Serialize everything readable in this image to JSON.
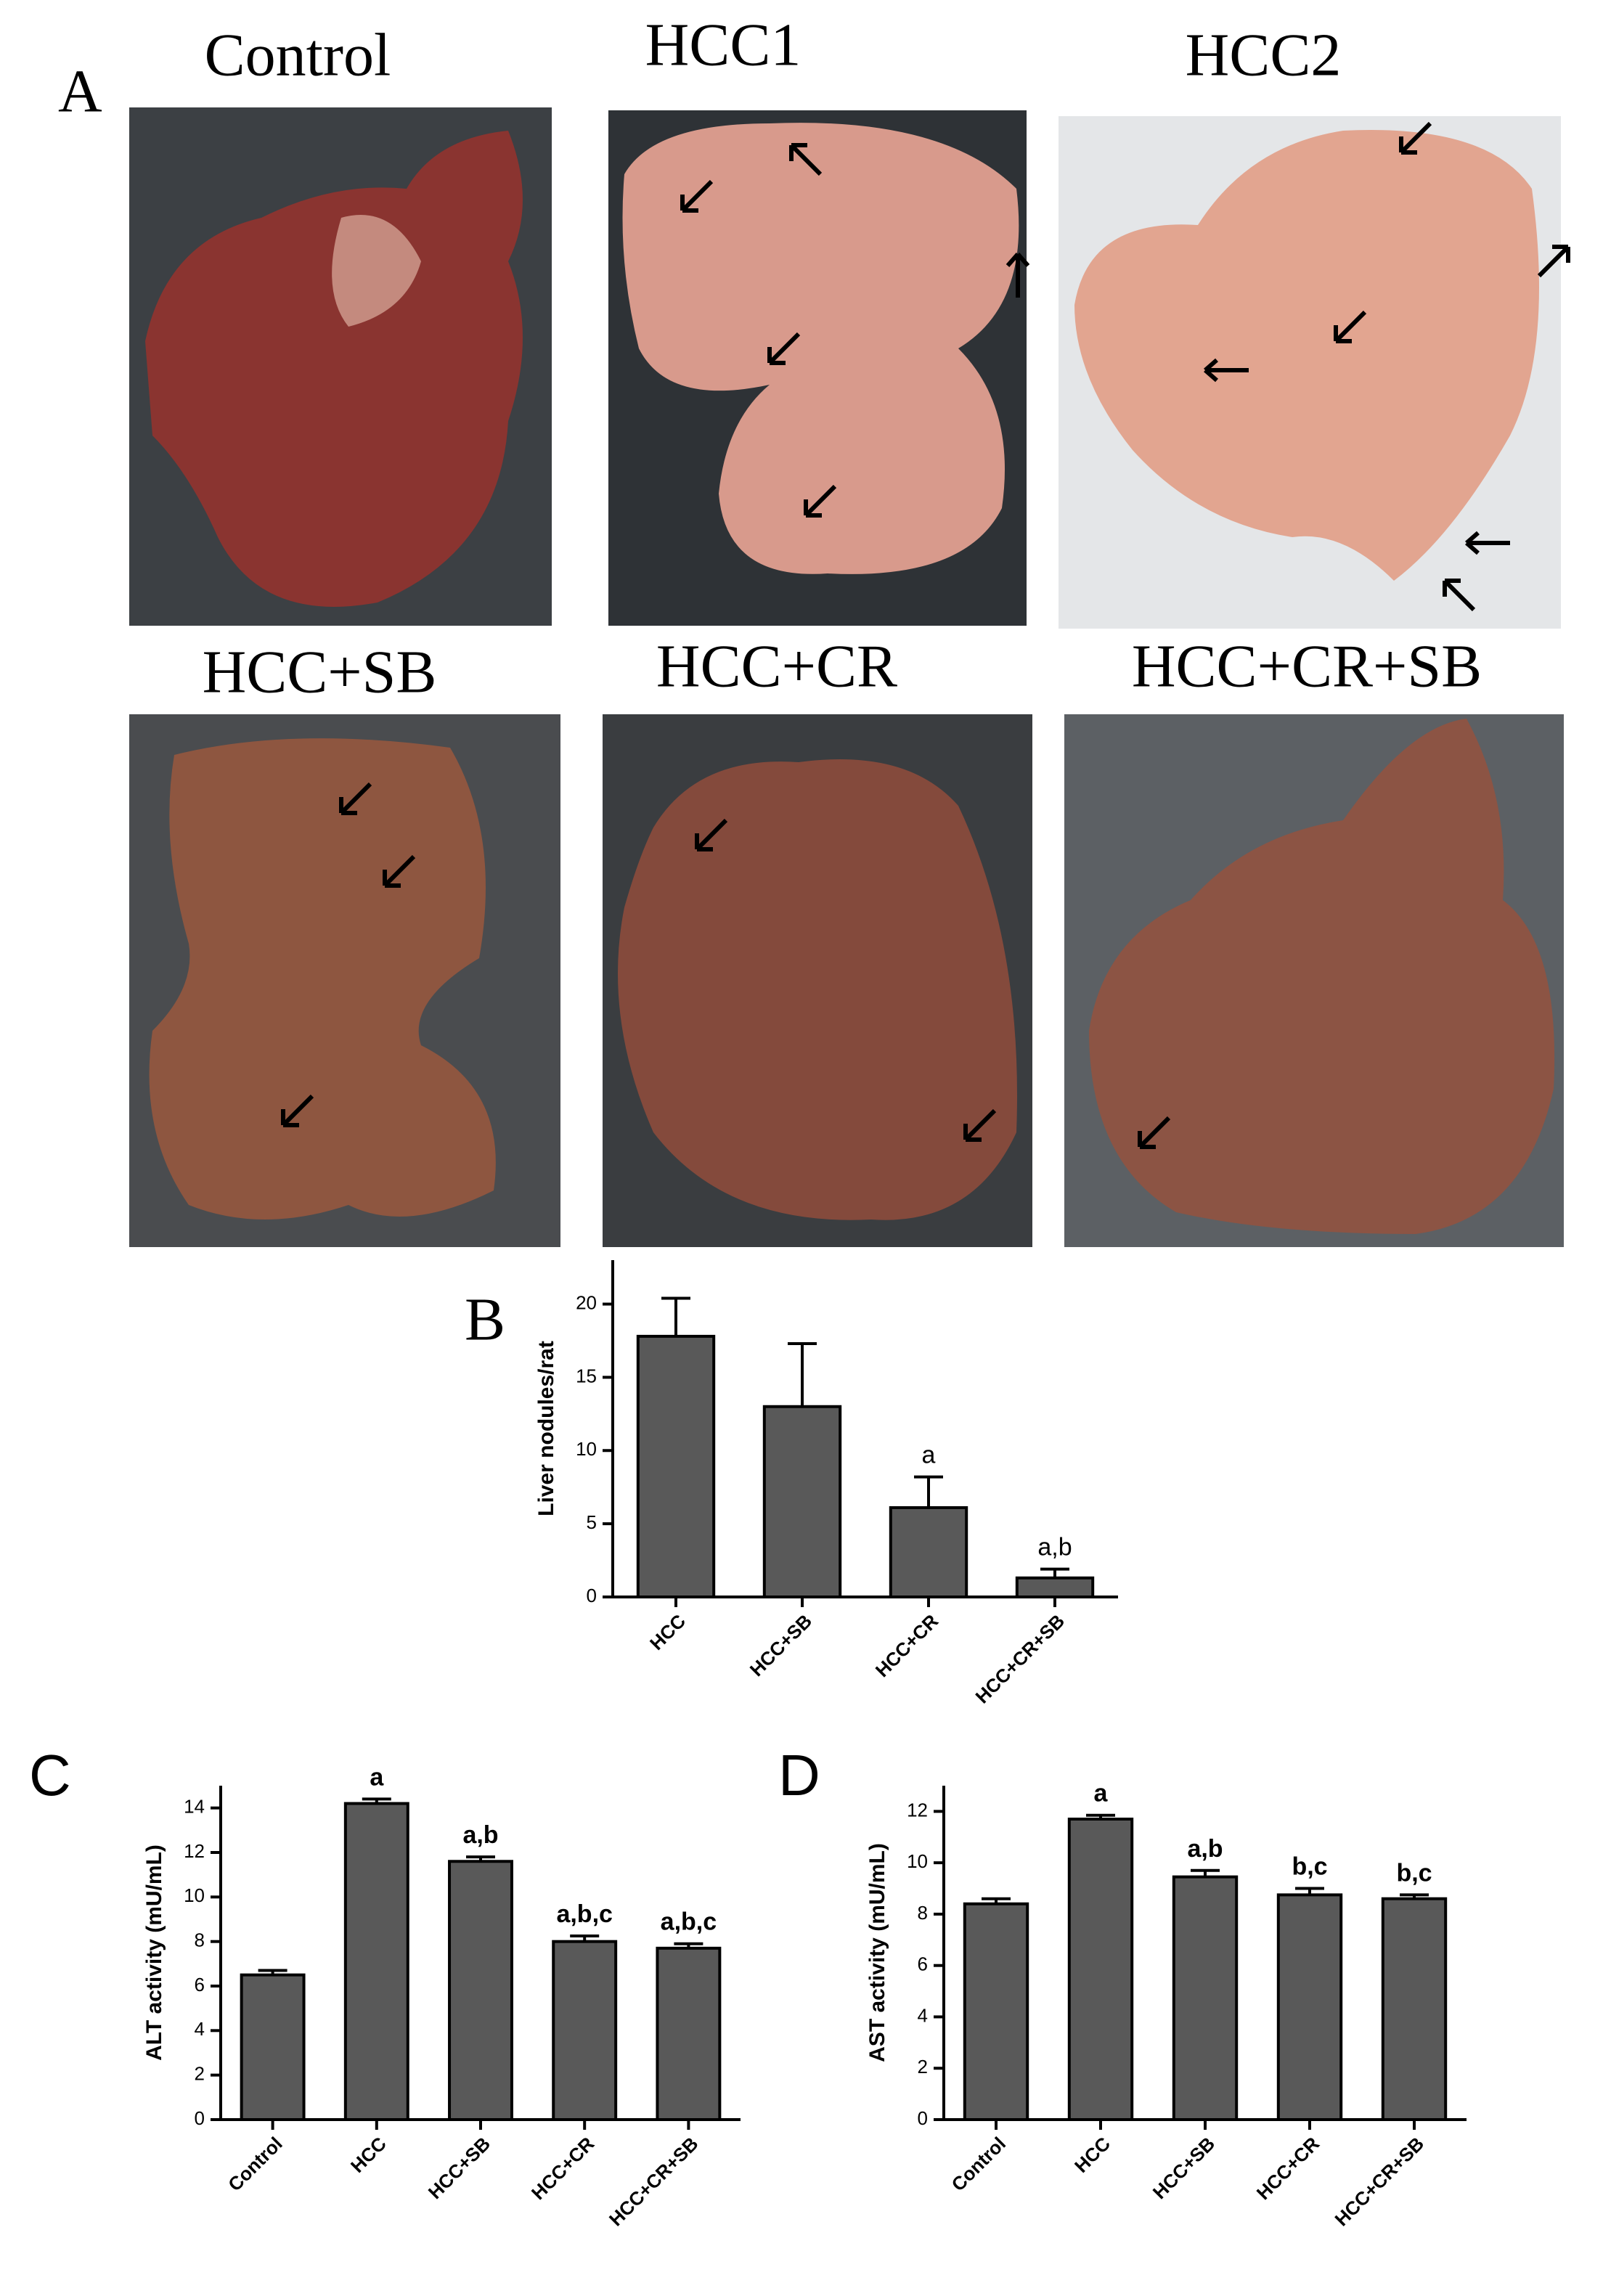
{
  "figure": {
    "panel": "A",
    "photos": [
      "Control",
      "HCC1",
      "HCC2",
      "HCC+SB",
      "HCC+CR",
      "HCC+CR+SB"
    ]
  },
  "chart_data": [
    {
      "type": "bar",
      "panel": "B",
      "ylabel": "Liver nodules/rat",
      "color": "#595959",
      "categories": [
        "HCC",
        "HCC+SB",
        "HCC+CR",
        "HCC+CR+SB"
      ],
      "values": [
        17.8,
        13,
        6.1,
        1.3
      ],
      "errors": [
        2.6,
        4.3,
        2.1,
        0.6
      ],
      "annotations": [
        null,
        null,
        "a",
        "a,b"
      ],
      "ylim": [
        0,
        23
      ],
      "yticks": [
        0,
        5,
        10,
        15,
        20
      ]
    },
    {
      "type": "bar",
      "panel": "C",
      "ylabel": "ALT activity (mU/mL)",
      "color": "#595959",
      "categories": [
        "Control",
        "HCC",
        "HCC+SB",
        "HCC+CR",
        "HCC+CR+SB"
      ],
      "values": [
        6.5,
        14.2,
        11.6,
        8.0,
        7.7
      ],
      "errors": [
        0.2,
        0.2,
        0.2,
        0.25,
        0.2
      ],
      "annotations": [
        null,
        "a",
        "a,b",
        "a,b,c",
        "a,b,c"
      ],
      "ylim": [
        0,
        15
      ],
      "yticks": [
        0,
        2,
        4,
        6,
        8,
        10,
        12,
        14
      ]
    },
    {
      "type": "bar",
      "panel": "D",
      "ylabel": "AST activity (mU/mL)",
      "color": "#595959",
      "categories": [
        "Control",
        "HCC",
        "HCC+SB",
        "HCC+CR",
        "HCC+CR+SB"
      ],
      "values": [
        8.4,
        11.7,
        9.45,
        8.75,
        8.6
      ],
      "errors": [
        0.2,
        0.15,
        0.25,
        0.25,
        0.15
      ],
      "annotations": [
        null,
        "a",
        "a,b",
        "b,c",
        "b,c"
      ],
      "ylim": [
        0,
        13
      ],
      "yticks": [
        0,
        2,
        4,
        6,
        8,
        10,
        12
      ]
    }
  ]
}
